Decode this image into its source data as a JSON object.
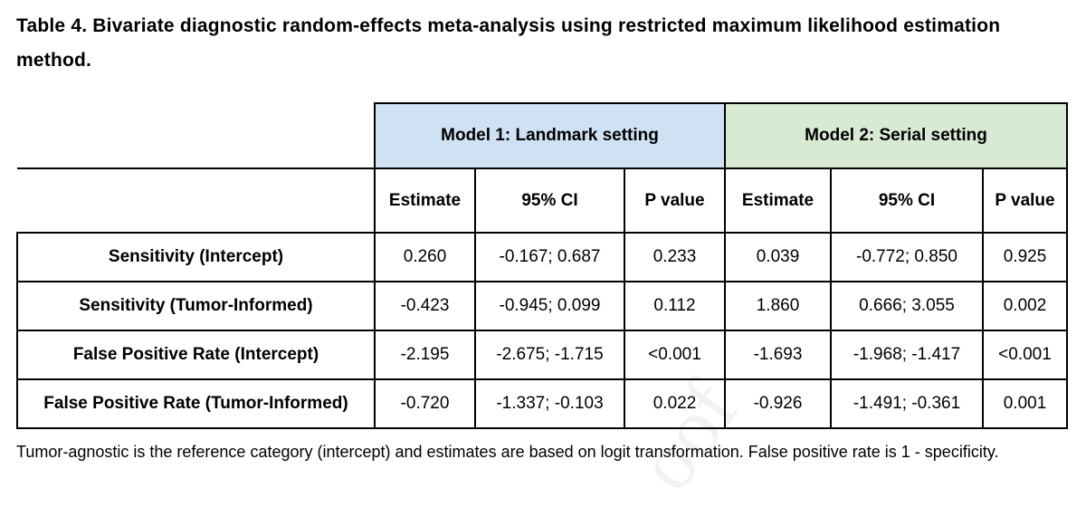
{
  "title": "Table 4. Bivariate diagnostic random-effects meta-analysis using restricted maximum likelihood estimation method.",
  "table": {
    "models": [
      {
        "label": "Model 1: Landmark setting",
        "color": "#cfe2f3"
      },
      {
        "label": "Model 2: Serial setting",
        "color": "#d9ead3"
      }
    ],
    "columns": [
      "Estimate",
      "95% CI",
      "P value",
      "Estimate",
      "95% CI",
      "P value"
    ],
    "rows": [
      {
        "label": "Sensitivity (Intercept)",
        "cells": [
          "0.260",
          "-0.167; 0.687",
          "0.233",
          "0.039",
          "-0.772; 0.850",
          "0.925"
        ]
      },
      {
        "label": "Sensitivity (Tumor-Informed)",
        "cells": [
          "-0.423",
          "-0.945; 0.099",
          "0.112",
          "1.860",
          "0.666; 3.055",
          "0.002"
        ]
      },
      {
        "label": "False Positive Rate (Intercept)",
        "cells": [
          "-2.195",
          "-2.675; -1.715",
          "<0.001",
          "-1.693",
          "-1.968; -1.417",
          "<0.001"
        ]
      },
      {
        "label": "False Positive Rate (Tumor-Informed)",
        "cells": [
          "-0.720",
          "-1.337; -0.103",
          "0.022",
          "-0.926",
          "-1.491; -0.361",
          "0.001"
        ]
      }
    ]
  },
  "footnote": "Tumor-agnostic is the reference category (intercept) and estimates are based on logit transformation. False positive rate is 1 - specificity."
}
